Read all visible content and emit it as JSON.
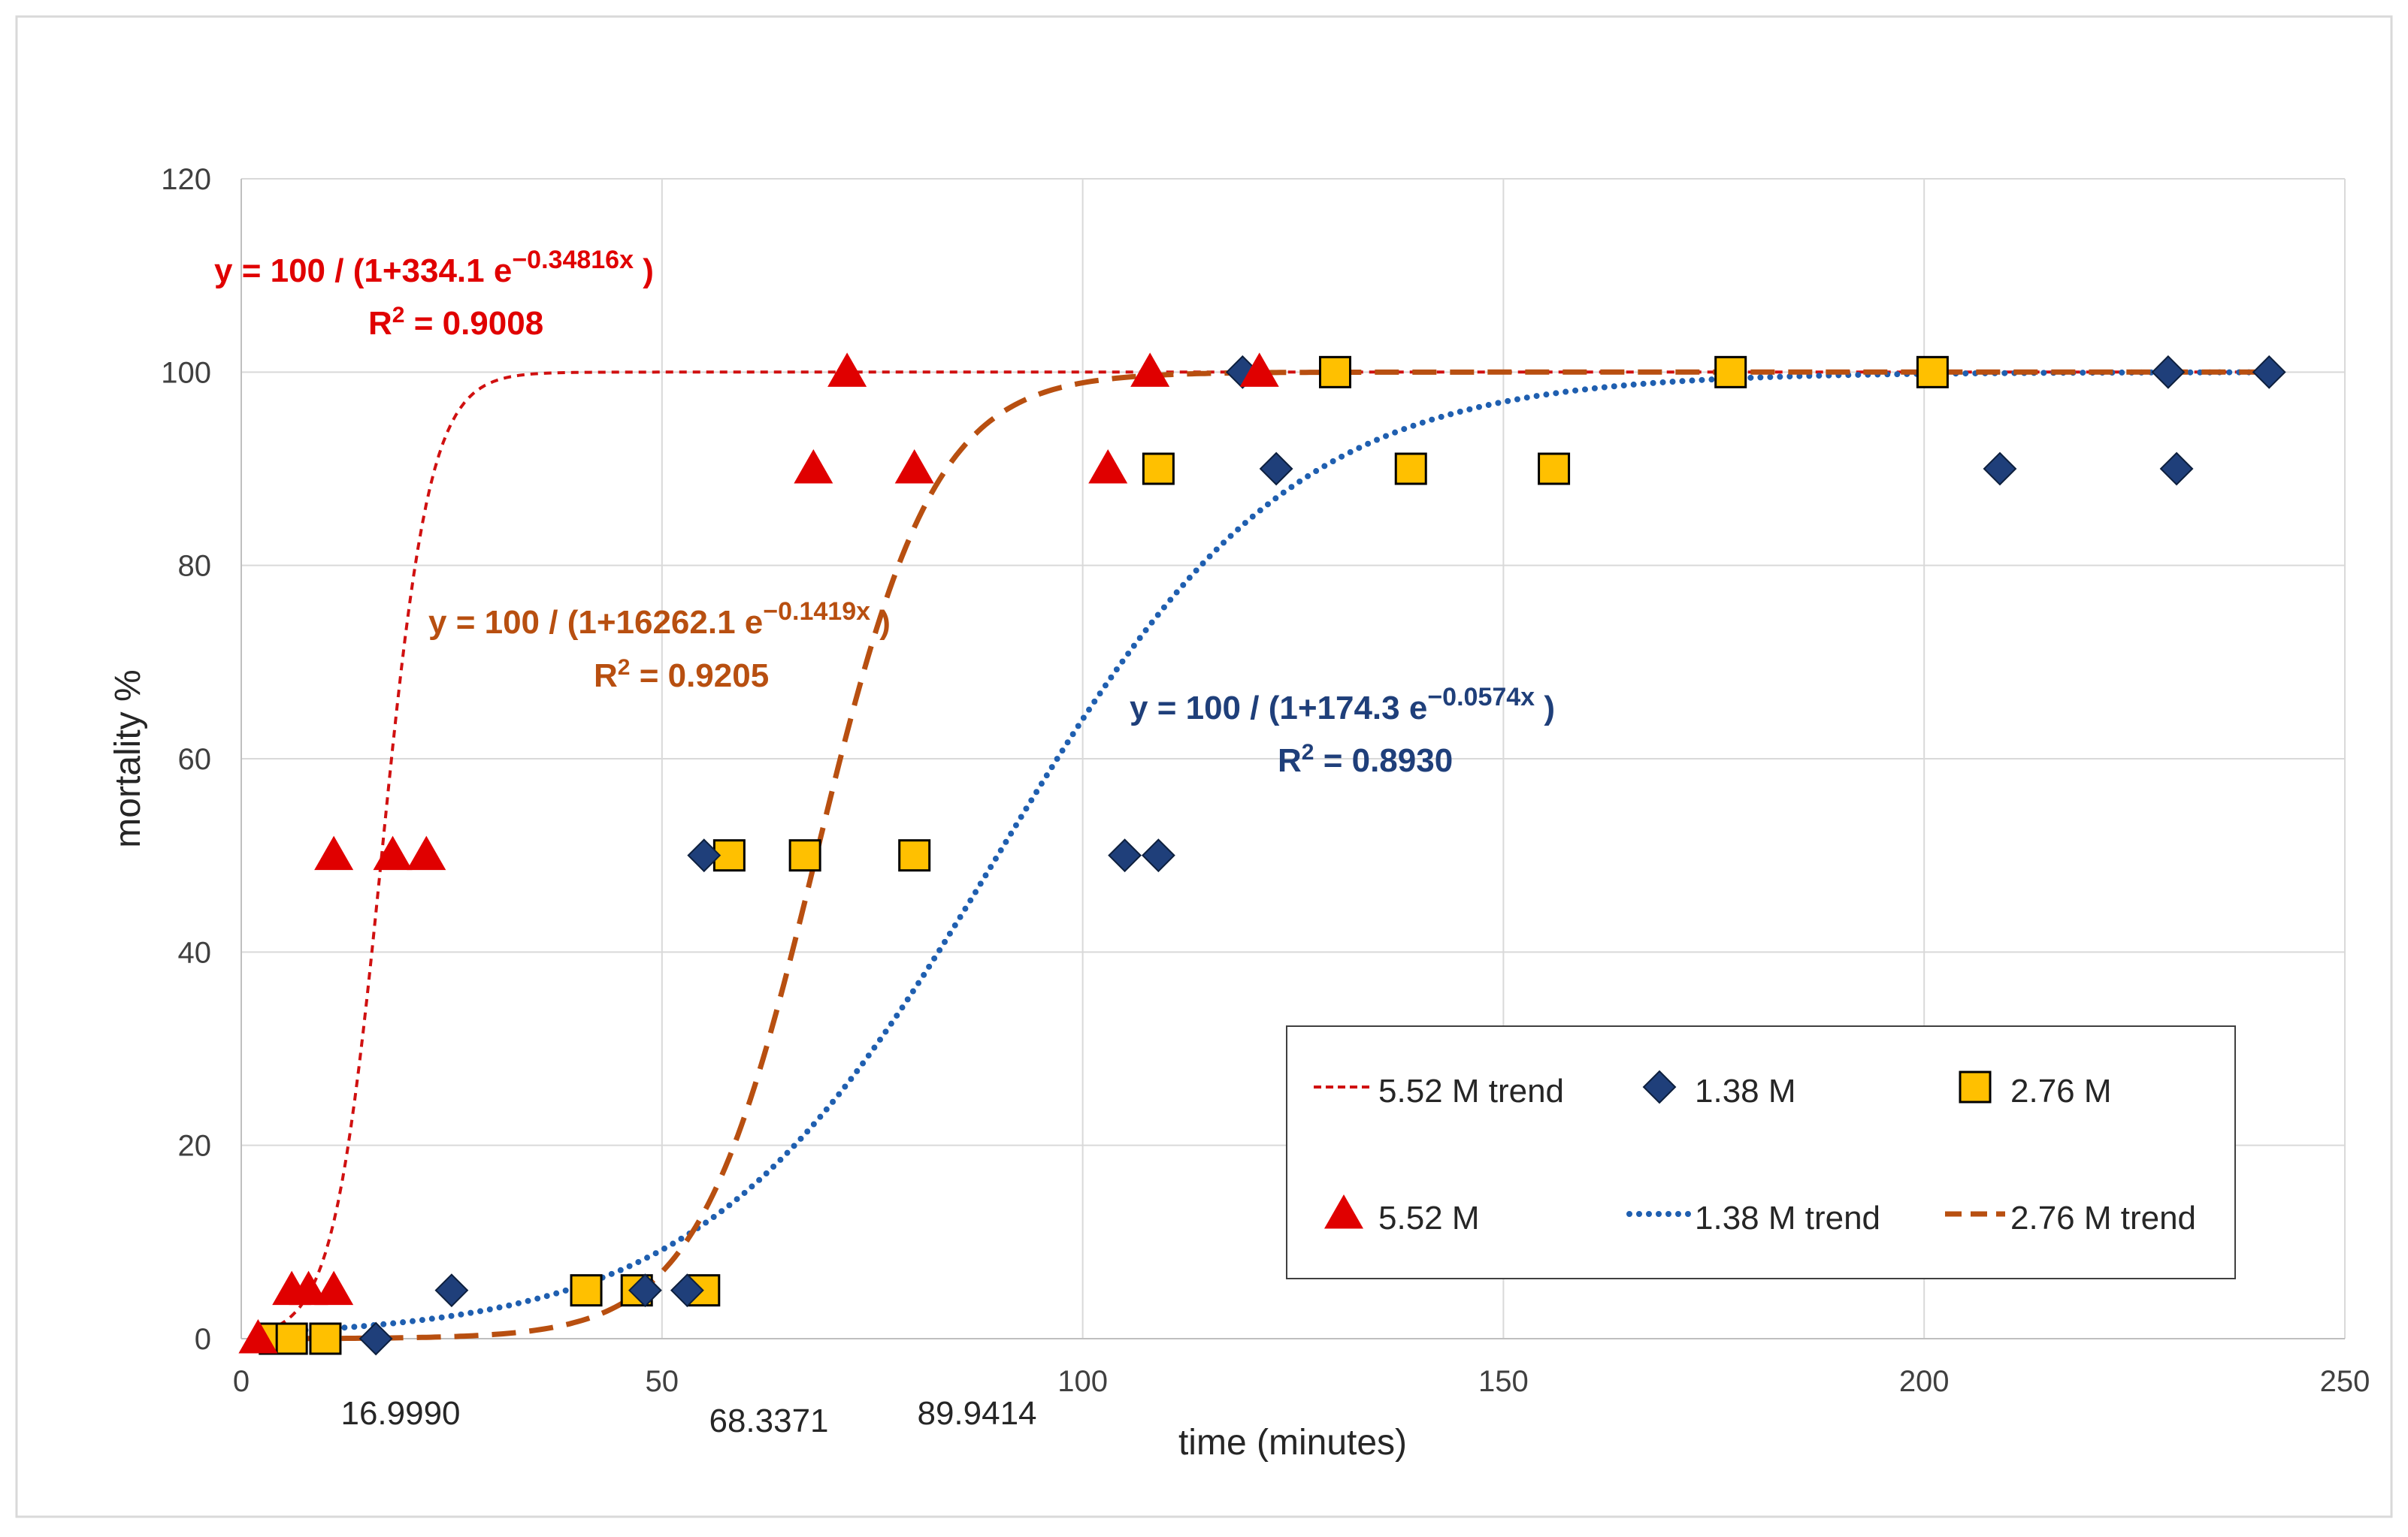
{
  "chart_data": {
    "type": "scatter",
    "xlabel": "time (minutes)",
    "ylabel": "mortality %",
    "xlim": [
      0,
      250
    ],
    "ylim": [
      0,
      120
    ],
    "x_ticks": [
      0,
      50,
      100,
      150,
      200,
      250
    ],
    "y_ticks": [
      0,
      20,
      40,
      60,
      80,
      100,
      120
    ],
    "grid": true,
    "legend_position": "bottom-right",
    "colors": {
      "s552": "#e00000",
      "s138": "#1f3f7a",
      "s276": "#ffc000",
      "trend552": "#d01010",
      "trend138": "#1f5fb0",
      "trend276": "#b84f10",
      "eq138_text": "#1f3f7a",
      "grid": "#d9d9d9",
      "axis_text": "#404040"
    },
    "series": [
      {
        "name": "5.52 M",
        "marker": "triangle",
        "x": [
          2,
          6,
          8,
          11,
          11,
          18,
          22,
          68,
          72,
          80,
          103,
          108,
          121
        ],
        "y": [
          0,
          5,
          5,
          5,
          50,
          50,
          50,
          90,
          100,
          90,
          90,
          100,
          100
        ]
      },
      {
        "name": "1.38 M",
        "marker": "diamond",
        "x": [
          16,
          25,
          48,
          53,
          55,
          105,
          109,
          119,
          123,
          209,
          229,
          230,
          241
        ],
        "y": [
          0,
          5,
          5,
          5,
          50,
          50,
          50,
          100,
          90,
          90,
          100,
          90,
          100
        ]
      },
      {
        "name": "2.76 M",
        "marker": "square",
        "x": [
          4,
          6,
          10,
          41,
          47,
          55,
          58,
          67,
          80,
          109,
          130,
          139,
          156,
          177,
          201
        ],
        "y": [
          0,
          0,
          0,
          5,
          5,
          5,
          50,
          50,
          50,
          90,
          100,
          90,
          90,
          100,
          100
        ]
      }
    ],
    "trendlines": [
      {
        "name": "5.52 M trend",
        "style": "short-dash",
        "a": 334.1,
        "b": 0.34816
      },
      {
        "name": "1.38 M trend",
        "style": "dotted",
        "a": 174.3,
        "b": 0.0574
      },
      {
        "name": "2.76 M trend",
        "style": "long-dash",
        "a": 16262.1,
        "b": 0.1419
      }
    ],
    "equations": [
      {
        "prefix": "y = 100 / (1+334.1 e",
        "exponent": "−0.34816x",
        "suffix": " )",
        "r2_label": "R",
        "r2_sup": "2",
        "r2_value": " = 0.9008"
      },
      {
        "prefix": "y = 100 / (1+16262.1 e",
        "exponent": "−0.1419x",
        "suffix": " )",
        "r2_label": "R",
        "r2_sup": "2",
        "r2_value": " = 0.9205"
      },
      {
        "prefix": "y = 100 / (1+174.3 e",
        "exponent": "−0.0574x",
        "suffix": " )",
        "r2_label": "R",
        "r2_sup": "2",
        "r2_value": " = 0.8930"
      }
    ],
    "annotations": [
      "16.9990",
      "68.3371",
      "89.9414"
    ],
    "legend": [
      "5.52 M trend",
      "1.38 M",
      "2.76 M",
      "5.52 M",
      "1.38 M trend",
      "2.76 M trend"
    ]
  }
}
